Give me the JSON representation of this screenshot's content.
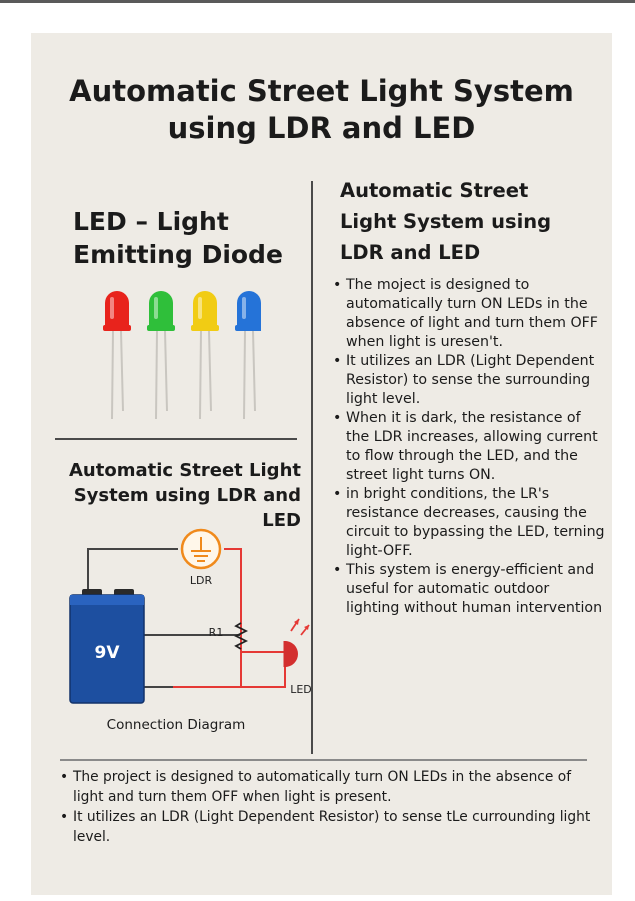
{
  "title": {
    "line1": "Automatic Street Light System",
    "line2": "using LDR and LED"
  },
  "led_section": {
    "heading_line1": "LED – Light",
    "heading_line2": "Emitting Diode",
    "led_colors": [
      "#e8231c",
      "#2fbf3a",
      "#f1cc14",
      "#2573d8"
    ]
  },
  "circuit_section": {
    "heading_line1": "Automatic Street Light",
    "heading_line2": "System using LDR and",
    "heading_line3": "LED",
    "battery_label": "9V",
    "ldr_label": "LDR",
    "resistor_label": "R1",
    "led_label": "LED",
    "caption": "Connection Diagram",
    "wire_color": "#e53935",
    "battery_color": "#1d4fa0"
  },
  "right_column": {
    "heading_line1": "Automatic Street",
    "heading_line2": "Light System using",
    "heading_line3": "LDR and LED",
    "bullets": [
      "The moject is designed to automatically turn ON LEDs in the absence of light and turn them OFF when light is uresen't.",
      "It utilizes an LDR (Light Dependent Resistor) to sense the surrounding light level.",
      "When it is dark, the resistance of the LDR increases, allowing current to flow through the LED, and the street light turns ON.",
      "in bright conditions, the LR's resistance decreases, causing the circuit to bypassing the LED, terning light-OFF.",
      "This system is energy-efficient and useful for automatic outdoor lighting without human intervention"
    ]
  },
  "bottom": {
    "bullets": [
      "The project is designed to automatically turn ON LEDs in the absence of light and turn them OFF when light is present.",
      "It utilizes an LDR (Light Dependent Resistor) to sense tLe currounding light level."
    ]
  }
}
